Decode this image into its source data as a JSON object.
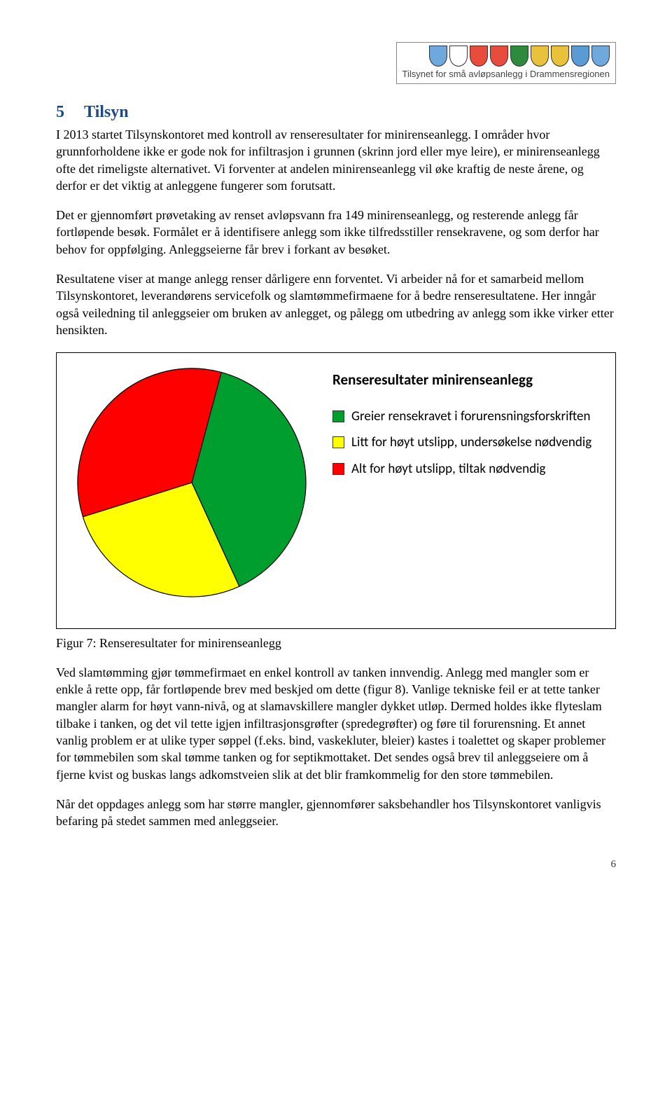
{
  "header": {
    "shield_colors": [
      "#6ea8dc",
      "#ffffff",
      "#e74c3c",
      "#e74c3c",
      "#2e8b3e",
      "#e8c23a",
      "#e8c23a",
      "#5a9bd5",
      "#6ea8dc"
    ],
    "caption": "Tilsynet for små avløpsanlegg i Drammensregionen"
  },
  "section": {
    "number": "5",
    "title": "Tilsyn"
  },
  "para1": "I 2013 startet Tilsynskontoret med kontroll av renseresultater for minirenseanlegg. I områder hvor grunnforholdene ikke er gode nok for infiltrasjon i grunnen (skrinn jord eller mye leire), er minirenseanlegg ofte det rimeligste alternativet. Vi forventer at andelen minirenseanlegg vil øke kraftig de neste årene, og derfor er det viktig at anleggene fungerer som forutsatt.",
  "para2": "Det er gjennomført prøvetaking av renset avløpsvann fra 149 minirenseanlegg, og resterende anlegg får fortløpende besøk. Formålet er å identifisere anlegg som ikke tilfredsstiller rensekravene, og som derfor har behov for oppfølging. Anleggseierne får brev i forkant av besøket.",
  "para3": "Resultatene viser at mange anlegg renser dårligere enn forventet. Vi arbeider nå for et samarbeid mellom Tilsynskontoret, leverandørens servicefolk og slamtømmefirmaene for å bedre renseresultatene. Her inngår også veiledning til anleggseier om bruken av anlegget, og pålegg om utbedring av anlegg som ikke virker etter hensikten.",
  "chart": {
    "type": "pie",
    "title": "Renseresultater minirenseanlegg",
    "size": 330,
    "background_color": "#ffffff",
    "border_color": "#000000",
    "slices": [
      {
        "label": "Greier rensekravet i forurensningsforskriften",
        "value": 39,
        "color": "#009e2f"
      },
      {
        "label": "Litt for høyt utslipp, undersøkelse nødvendig",
        "value": 27,
        "color": "#ffff00"
      },
      {
        "label": "Alt for høyt utslipp, tiltak nødvendig",
        "value": 34,
        "color": "#ff0000"
      }
    ],
    "start_angle_deg": -75,
    "stroke": "#000000",
    "stroke_width": 1.2,
    "legend_swatch_border": "#333333",
    "legend_fontsize": 19,
    "title_fontsize": 21
  },
  "fig_caption": "Figur 7: Renseresultater for minirenseanlegg",
  "para4": "Ved slamtømming gjør tømmefirmaet en enkel kontroll av tanken innvendig. Anlegg med mangler som er enkle å rette opp, får fortløpende brev med beskjed om dette (figur 8). Vanlige tekniske feil er at tette tanker mangler alarm for høyt vann-nivå, og at slamavskillere mangler dykket utløp. Dermed holdes ikke flyteslam tilbake i tanken, og det vil tette igjen infiltrasjonsgrøfter (spredegrøfter) og føre til forurensning. Et annet vanlig problem er at ulike typer søppel (f.eks. bind, vaskekluter, bleier) kastes i toalettet og skaper problemer for tømmebilen som skal tømme tanken og for septikmottaket. Det sendes også brev til anleggseiere om å fjerne kvist og buskas langs adkomstveien slik at det blir framkommelig for den store tømmebilen.",
  "para5": "Når det oppdages anlegg som har større mangler, gjennomfører saksbehandler hos Tilsynskontoret vanligvis befaring på stedet sammen med anleggseier.",
  "page_number": "6"
}
